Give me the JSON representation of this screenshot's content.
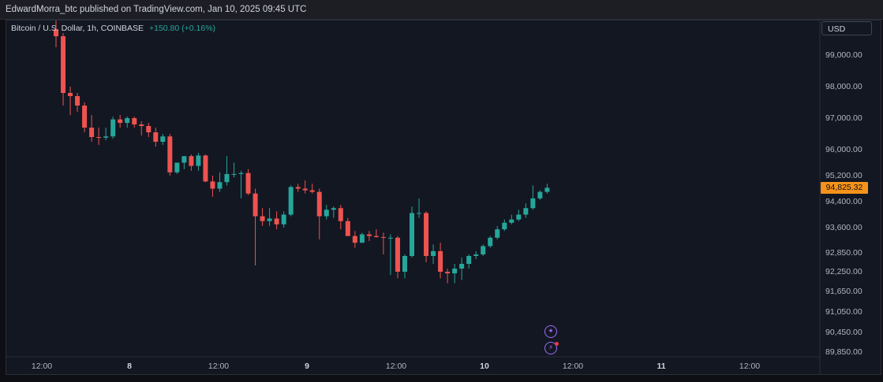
{
  "header": {
    "publisher_line": "EdwardMorra_btc published on TradingView.com, Jan 10, 2025 09:45 UTC"
  },
  "legend": {
    "symbol": "Bitcoin / U.S. Dollar, 1h, COINBASE",
    "change": "+150.80 (+0.16%)"
  },
  "currency": "USD",
  "last_price": "94,825.32",
  "icons": {
    "top": "sparkle-icon",
    "bottom": "lightning-icon"
  },
  "colors": {
    "up": "#26a69a",
    "down": "#ef5350",
    "price_badge": "#f7931a",
    "background": "#131722"
  },
  "chart_data": {
    "type": "candlestick",
    "y_axis_labels": [
      "99,000.00",
      "98,000.00",
      "97,000.00",
      "96,000.00",
      "95,200.00",
      "94,400.00",
      "93,600.00",
      "92,850.00",
      "92,250.00",
      "91,650.00",
      "91,050.00",
      "90,450.00",
      "89,850.00"
    ],
    "x_axis_labels": [
      {
        "label": "12:00",
        "bold": false
      },
      {
        "label": "8",
        "bold": true
      },
      {
        "label": "12:00",
        "bold": false
      },
      {
        "label": "9",
        "bold": true
      },
      {
        "label": "12:00",
        "bold": false
      },
      {
        "label": "10",
        "bold": true
      },
      {
        "label": "12:00",
        "bold": false
      },
      {
        "label": "11",
        "bold": true
      },
      {
        "label": "12:00",
        "bold": false
      }
    ],
    "candles": [
      {
        "o": 99820,
        "h": 100150,
        "l": 99250,
        "c": 99600
      },
      {
        "o": 99600,
        "h": 99700,
        "l": 97400,
        "c": 97800
      },
      {
        "o": 97800,
        "h": 98000,
        "l": 97100,
        "c": 97700
      },
      {
        "o": 97700,
        "h": 97800,
        "l": 97200,
        "c": 97400
      },
      {
        "o": 97400,
        "h": 97500,
        "l": 96550,
        "c": 96700
      },
      {
        "o": 96700,
        "h": 97100,
        "l": 96250,
        "c": 96400
      },
      {
        "o": 96400,
        "h": 96700,
        "l": 96150,
        "c": 96380
      },
      {
        "o": 96380,
        "h": 96700,
        "l": 96300,
        "c": 96420
      },
      {
        "o": 96420,
        "h": 97050,
        "l": 96350,
        "c": 96960
      },
      {
        "o": 96960,
        "h": 97100,
        "l": 96700,
        "c": 96850
      },
      {
        "o": 96850,
        "h": 97050,
        "l": 96700,
        "c": 97000
      },
      {
        "o": 97000,
        "h": 97050,
        "l": 96700,
        "c": 96800
      },
      {
        "o": 96800,
        "h": 96900,
        "l": 96450,
        "c": 96750
      },
      {
        "o": 96750,
        "h": 96850,
        "l": 96400,
        "c": 96550
      },
      {
        "o": 96550,
        "h": 96700,
        "l": 96100,
        "c": 96250
      },
      {
        "o": 96250,
        "h": 96500,
        "l": 96150,
        "c": 96420
      },
      {
        "o": 96420,
        "h": 96500,
        "l": 95200,
        "c": 95300
      },
      {
        "o": 95300,
        "h": 95600,
        "l": 95250,
        "c": 95600
      },
      {
        "o": 95600,
        "h": 95800,
        "l": 95400,
        "c": 95800
      },
      {
        "o": 95800,
        "h": 95850,
        "l": 95350,
        "c": 95500
      },
      {
        "o": 95500,
        "h": 95900,
        "l": 95350,
        "c": 95820
      },
      {
        "o": 95820,
        "h": 95850,
        "l": 95000,
        "c": 95020
      },
      {
        "o": 95020,
        "h": 95200,
        "l": 94550,
        "c": 94800
      },
      {
        "o": 94800,
        "h": 95300,
        "l": 94700,
        "c": 95000
      },
      {
        "o": 95000,
        "h": 95800,
        "l": 94900,
        "c": 95250
      },
      {
        "o": 95250,
        "h": 95600,
        "l": 95150,
        "c": 95250
      },
      {
        "o": 95250,
        "h": 95350,
        "l": 94500,
        "c": 95280
      },
      {
        "o": 95280,
        "h": 95400,
        "l": 94600,
        "c": 94650
      },
      {
        "o": 94650,
        "h": 94800,
        "l": 92450,
        "c": 93950
      },
      {
        "o": 93950,
        "h": 94200,
        "l": 93650,
        "c": 93800
      },
      {
        "o": 93800,
        "h": 94200,
        "l": 93650,
        "c": 93880
      },
      {
        "o": 93880,
        "h": 94100,
        "l": 93550,
        "c": 93700
      },
      {
        "o": 93700,
        "h": 94100,
        "l": 93600,
        "c": 94000
      },
      {
        "o": 94000,
        "h": 94900,
        "l": 93950,
        "c": 94850
      },
      {
        "o": 94850,
        "h": 94950,
        "l": 94700,
        "c": 94800
      },
      {
        "o": 94800,
        "h": 95050,
        "l": 94650,
        "c": 94750
      },
      {
        "o": 94750,
        "h": 94950,
        "l": 94650,
        "c": 94700
      },
      {
        "o": 94700,
        "h": 94800,
        "l": 93250,
        "c": 93950
      },
      {
        "o": 93950,
        "h": 94300,
        "l": 93850,
        "c": 94150
      },
      {
        "o": 94150,
        "h": 94250,
        "l": 93900,
        "c": 94200
      },
      {
        "o": 94200,
        "h": 94300,
        "l": 93550,
        "c": 93800
      },
      {
        "o": 93800,
        "h": 93900,
        "l": 93350,
        "c": 93350
      },
      {
        "o": 93350,
        "h": 93500,
        "l": 93000,
        "c": 93150
      },
      {
        "o": 93150,
        "h": 93450,
        "l": 93150,
        "c": 93400
      },
      {
        "o": 93400,
        "h": 93500,
        "l": 93200,
        "c": 93350
      },
      {
        "o": 93350,
        "h": 93550,
        "l": 93300,
        "c": 93320
      },
      {
        "o": 93320,
        "h": 93450,
        "l": 92800,
        "c": 93300
      },
      {
        "o": 93300,
        "h": 93400,
        "l": 92150,
        "c": 93300
      },
      {
        "o": 93300,
        "h": 93350,
        "l": 92050,
        "c": 92250
      },
      {
        "o": 92250,
        "h": 92800,
        "l": 92050,
        "c": 92750
      },
      {
        "o": 92750,
        "h": 94250,
        "l": 92700,
        "c": 94050
      },
      {
        "o": 94050,
        "h": 94500,
        "l": 93900,
        "c": 94050
      },
      {
        "o": 94050,
        "h": 94100,
        "l": 92550,
        "c": 92750
      },
      {
        "o": 92750,
        "h": 93100,
        "l": 92500,
        "c": 92900
      },
      {
        "o": 92900,
        "h": 93150,
        "l": 92050,
        "c": 92250
      },
      {
        "o": 92250,
        "h": 92350,
        "l": 91900,
        "c": 92200
      },
      {
        "o": 92200,
        "h": 92500,
        "l": 91900,
        "c": 92350
      },
      {
        "o": 92350,
        "h": 92700,
        "l": 92000,
        "c": 92500
      },
      {
        "o": 92500,
        "h": 92800,
        "l": 92350,
        "c": 92750
      },
      {
        "o": 92750,
        "h": 92900,
        "l": 92650,
        "c": 92800
      },
      {
        "o": 92800,
        "h": 93100,
        "l": 92750,
        "c": 93050
      },
      {
        "o": 93050,
        "h": 93350,
        "l": 93000,
        "c": 93300
      },
      {
        "o": 93300,
        "h": 93650,
        "l": 93250,
        "c": 93550
      },
      {
        "o": 93550,
        "h": 93850,
        "l": 93500,
        "c": 93750
      },
      {
        "o": 93750,
        "h": 94000,
        "l": 93700,
        "c": 93850
      },
      {
        "o": 93850,
        "h": 94150,
        "l": 93800,
        "c": 94000
      },
      {
        "o": 94000,
        "h": 94350,
        "l": 93900,
        "c": 94200
      },
      {
        "o": 94200,
        "h": 94900,
        "l": 94150,
        "c": 94500
      },
      {
        "o": 94500,
        "h": 94750,
        "l": 94450,
        "c": 94700
      },
      {
        "o": 94700,
        "h": 94950,
        "l": 94650,
        "c": 94825.32
      }
    ]
  }
}
